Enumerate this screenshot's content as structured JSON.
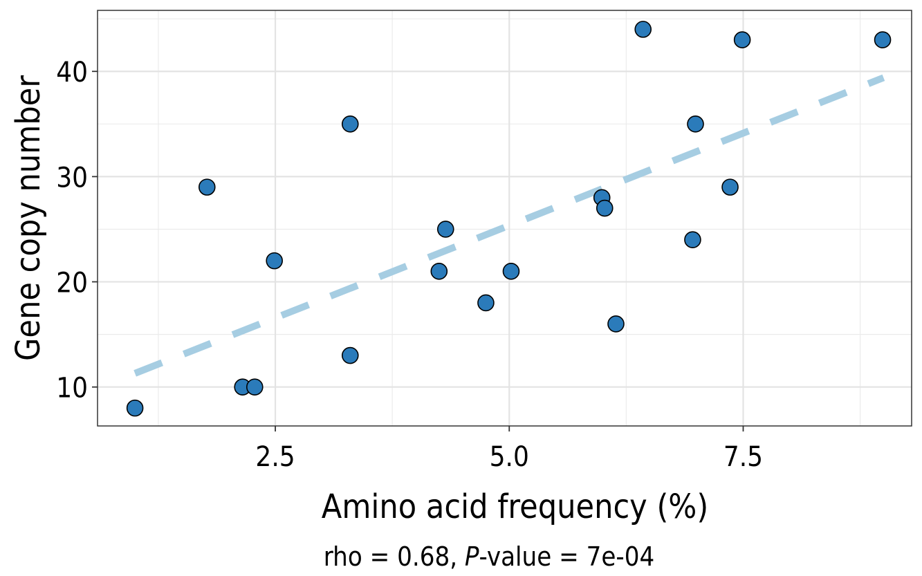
{
  "chart_data": {
    "type": "scatter",
    "title": "",
    "xlabel": "Amino acid frequency (%)",
    "ylabel": "Gene copy number",
    "xlim": [
      0.6,
      9.3
    ],
    "ylim": [
      6.3,
      45.8
    ],
    "x_ticks": [
      2.5,
      5.0,
      7.5
    ],
    "x_tick_labels": [
      "2.5",
      "5.0",
      "7.5"
    ],
    "x_minor_ticks": [
      1.25,
      3.75,
      6.25,
      8.75
    ],
    "y_ticks": [
      10,
      20,
      30,
      40
    ],
    "y_tick_labels": [
      "10",
      "20",
      "30",
      "40"
    ],
    "y_minor_ticks": [
      15,
      25,
      35,
      45
    ],
    "grid": true,
    "point_color": "#2b7bba",
    "trend_color": "#a6cde2",
    "points": [
      {
        "x": 1.0,
        "y": 8
      },
      {
        "x": 1.77,
        "y": 29
      },
      {
        "x": 2.15,
        "y": 10
      },
      {
        "x": 2.28,
        "y": 10
      },
      {
        "x": 2.49,
        "y": 22
      },
      {
        "x": 3.3,
        "y": 35
      },
      {
        "x": 3.3,
        "y": 13
      },
      {
        "x": 4.25,
        "y": 21
      },
      {
        "x": 4.32,
        "y": 25
      },
      {
        "x": 4.75,
        "y": 18
      },
      {
        "x": 5.02,
        "y": 21
      },
      {
        "x": 5.99,
        "y": 28
      },
      {
        "x": 6.02,
        "y": 27
      },
      {
        "x": 6.14,
        "y": 16
      },
      {
        "x": 6.43,
        "y": 44
      },
      {
        "x": 6.96,
        "y": 24
      },
      {
        "x": 6.99,
        "y": 35
      },
      {
        "x": 7.36,
        "y": 29
      },
      {
        "x": 7.49,
        "y": 43
      },
      {
        "x": 8.99,
        "y": 43
      }
    ],
    "trendline": {
      "x": [
        1.0,
        9.0
      ],
      "y": [
        11.3,
        39.4
      ],
      "style": "dashed"
    },
    "caption": {
      "prefix": "rho = 0.68, ",
      "p_symbol": "P",
      "suffix": "-value = 7e-04"
    }
  }
}
